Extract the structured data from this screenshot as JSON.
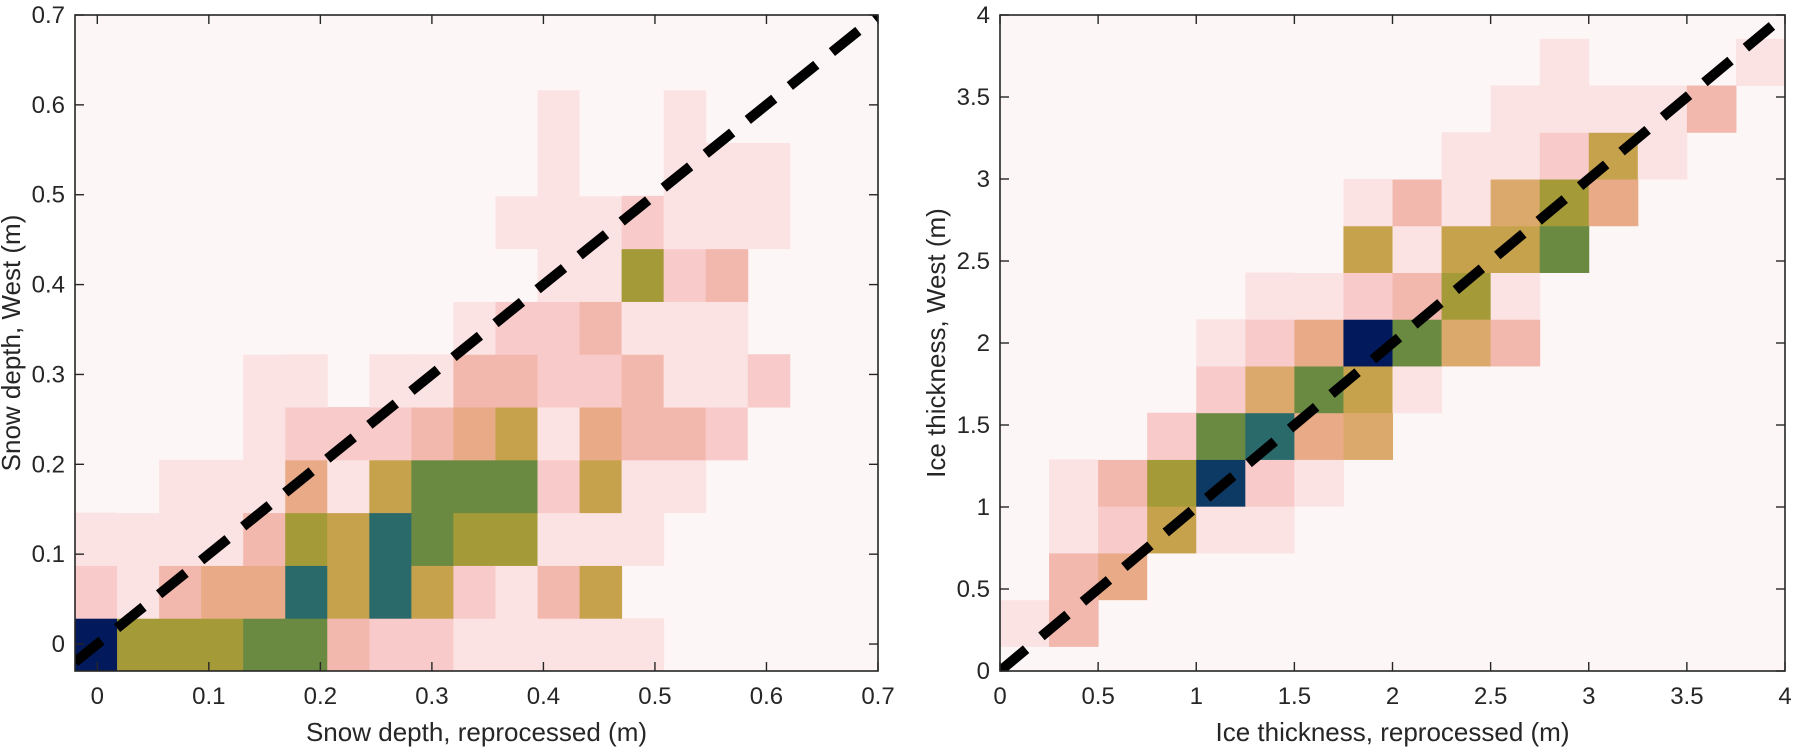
{
  "chart_data": [
    {
      "type": "heatmap",
      "xlabel": "Snow depth, reprocessed (m)",
      "ylabel": "Snow depth, West (m)",
      "xlim": [
        -0.02,
        0.7
      ],
      "ylim": [
        -0.03,
        0.7
      ],
      "xticks": [
        0,
        0.1,
        0.2,
        0.3,
        0.4,
        0.5,
        0.6,
        0.7
      ],
      "xtick_labels": [
        "0",
        "0.1",
        "0.2",
        "0.3",
        "0.4",
        "0.5",
        "0.6",
        "0.7"
      ],
      "yticks": [
        0,
        0.1,
        0.2,
        0.3,
        0.4,
        0.5,
        0.6,
        0.7
      ],
      "ytick_labels": [
        "0",
        "0.1",
        "0.2",
        "0.3",
        "0.4",
        "0.5",
        "0.6",
        "0.7"
      ],
      "x_bin_start": -0.02,
      "x_bin_width": 0.0377,
      "y_bin_start": -0.03,
      "y_bin_width": 0.05875,
      "bins": [
        [
          0,
          0,
          10
        ],
        [
          1,
          0,
          6
        ],
        [
          2,
          0,
          6
        ],
        [
          3,
          0,
          6
        ],
        [
          4,
          0,
          7
        ],
        [
          5,
          0,
          7
        ],
        [
          6,
          0,
          3
        ],
        [
          7,
          0,
          2
        ],
        [
          8,
          0,
          2
        ],
        [
          9,
          0,
          1
        ],
        [
          10,
          0,
          1
        ],
        [
          11,
          0,
          1
        ],
        [
          12,
          0,
          1
        ],
        [
          13,
          0,
          0.5
        ],
        [
          0,
          1,
          2
        ],
        [
          1,
          1,
          1
        ],
        [
          2,
          1,
          3
        ],
        [
          3,
          1,
          4
        ],
        [
          4,
          1,
          4
        ],
        [
          5,
          1,
          8
        ],
        [
          6,
          1,
          5
        ],
        [
          7,
          1,
          8
        ],
        [
          8,
          1,
          5
        ],
        [
          9,
          1,
          2
        ],
        [
          10,
          1,
          1
        ],
        [
          11,
          1,
          3
        ],
        [
          12,
          1,
          5
        ],
        [
          0,
          2,
          0.5
        ],
        [
          1,
          2,
          0.5
        ],
        [
          2,
          2,
          0.5
        ],
        [
          3,
          2,
          1
        ],
        [
          4,
          2,
          3
        ],
        [
          5,
          2,
          6
        ],
        [
          6,
          2,
          5
        ],
        [
          7,
          2,
          8
        ],
        [
          8,
          2,
          7
        ],
        [
          9,
          2,
          6
        ],
        [
          10,
          2,
          6
        ],
        [
          11,
          2,
          0.5
        ],
        [
          12,
          2,
          0.5
        ],
        [
          13,
          2,
          0.5
        ],
        [
          1,
          3,
          0.3
        ],
        [
          2,
          3,
          0.5
        ],
        [
          3,
          3,
          0.5
        ],
        [
          4,
          3,
          1
        ],
        [
          5,
          3,
          4
        ],
        [
          6,
          3,
          1
        ],
        [
          7,
          3,
          5
        ],
        [
          8,
          3,
          7
        ],
        [
          9,
          3,
          7
        ],
        [
          10,
          3,
          7
        ],
        [
          11,
          3,
          2
        ],
        [
          12,
          3,
          5
        ],
        [
          13,
          3,
          1
        ],
        [
          14,
          3,
          0.5
        ],
        [
          4,
          4,
          1
        ],
        [
          5,
          4,
          2
        ],
        [
          6,
          4,
          2
        ],
        [
          7,
          4,
          2
        ],
        [
          8,
          4,
          3
        ],
        [
          9,
          4,
          4
        ],
        [
          10,
          4,
          5
        ],
        [
          11,
          4,
          1
        ],
        [
          12,
          4,
          4
        ],
        [
          13,
          4,
          3
        ],
        [
          14,
          4,
          3
        ],
        [
          15,
          4,
          2
        ],
        [
          16,
          4,
          0.3
        ],
        [
          2,
          5,
          0.3
        ],
        [
          3,
          5,
          0.3
        ],
        [
          4,
          5,
          0.5
        ],
        [
          5,
          5,
          0.5
        ],
        [
          7,
          5,
          1
        ],
        [
          8,
          5,
          1
        ],
        [
          9,
          5,
          3
        ],
        [
          10,
          5,
          3
        ],
        [
          11,
          5,
          2
        ],
        [
          12,
          5,
          2
        ],
        [
          13,
          5,
          3
        ],
        [
          14,
          5,
          1
        ],
        [
          15,
          5,
          1
        ],
        [
          16,
          5,
          2
        ],
        [
          3,
          6,
          0.3
        ],
        [
          4,
          6,
          0.3
        ],
        [
          9,
          6,
          0.5
        ],
        [
          10,
          6,
          2
        ],
        [
          11,
          6,
          2
        ],
        [
          12,
          6,
          3
        ],
        [
          13,
          6,
          1
        ],
        [
          14,
          6,
          1
        ],
        [
          15,
          6,
          0.5
        ],
        [
          8,
          7,
          0.2
        ],
        [
          9,
          7,
          0.3
        ],
        [
          10,
          7,
          0.3
        ],
        [
          11,
          7,
          1
        ],
        [
          12,
          7,
          1
        ],
        [
          13,
          7,
          6
        ],
        [
          14,
          7,
          2
        ],
        [
          15,
          7,
          3
        ],
        [
          7,
          8,
          0.2
        ],
        [
          8,
          8,
          0.2
        ],
        [
          9,
          8,
          0.3
        ],
        [
          10,
          8,
          0.5
        ],
        [
          11,
          8,
          0.5
        ],
        [
          12,
          8,
          1
        ],
        [
          13,
          8,
          2
        ],
        [
          14,
          8,
          1
        ],
        [
          15,
          8,
          1
        ],
        [
          16,
          8,
          0.5
        ],
        [
          9,
          9,
          0.2
        ],
        [
          10,
          9,
          0.3
        ],
        [
          11,
          9,
          1
        ],
        [
          12,
          9,
          0.3
        ],
        [
          14,
          9,
          1
        ],
        [
          15,
          9,
          0.5
        ],
        [
          16,
          9,
          1
        ],
        [
          10,
          10,
          0.3
        ],
        [
          11,
          10,
          0.5
        ],
        [
          12,
          10,
          0.3
        ],
        [
          13,
          10,
          0.3
        ],
        [
          14,
          10,
          0.5
        ]
      ],
      "reference_line": "1:1 dashed"
    },
    {
      "type": "heatmap",
      "xlabel": "Ice thickness, reprocessed (m)",
      "ylabel": "Ice thickness, West (m)",
      "xlim": [
        0,
        4
      ],
      "ylim": [
        0,
        4
      ],
      "xticks": [
        0,
        0.5,
        1,
        1.5,
        2,
        2.5,
        3,
        3.5,
        4
      ],
      "xtick_labels": [
        "0",
        "0.5",
        "1",
        "1.5",
        "2",
        "2.5",
        "3",
        "3.5",
        "4"
      ],
      "yticks": [
        0,
        0.5,
        1,
        1.5,
        2,
        2.5,
        3,
        3.5,
        4
      ],
      "ytick_labels": [
        "0",
        "0.5",
        "1",
        "1.5",
        "2",
        "2.5",
        "3",
        "3.5",
        "4"
      ],
      "x_bin_start": 0,
      "x_bin_width": 0.25,
      "y_bin_start": 0.15,
      "y_bin_width": 0.285,
      "bins": [
        [
          0,
          0,
          1
        ],
        [
          1,
          0,
          3
        ],
        [
          6,
          0,
          0.2
        ],
        [
          0,
          1,
          0.2
        ],
        [
          1,
          1,
          3
        ],
        [
          2,
          1,
          4
        ],
        [
          3,
          1,
          0.2
        ],
        [
          1,
          2,
          1
        ],
        [
          2,
          2,
          2
        ],
        [
          3,
          2,
          6
        ],
        [
          4,
          2,
          1
        ],
        [
          5,
          2,
          0.5
        ],
        [
          1,
          3,
          0.5
        ],
        [
          2,
          3,
          3
        ],
        [
          3,
          3,
          7
        ],
        [
          4,
          3,
          10
        ],
        [
          5,
          3,
          2
        ],
        [
          6,
          3,
          0.5
        ],
        [
          2,
          4,
          0.2
        ],
        [
          3,
          4,
          2
        ],
        [
          4,
          4,
          8
        ],
        [
          5,
          4,
          9
        ],
        [
          6,
          4,
          4
        ],
        [
          7,
          4,
          5
        ],
        [
          4,
          5,
          2
        ],
        [
          5,
          5,
          5
        ],
        [
          6,
          5,
          8
        ],
        [
          7,
          5,
          6
        ],
        [
          8,
          5,
          1
        ],
        [
          4,
          6,
          0.5
        ],
        [
          5,
          6,
          2
        ],
        [
          6,
          6,
          4
        ],
        [
          7,
          6,
          11
        ],
        [
          8,
          6,
          8
        ],
        [
          9,
          6,
          5
        ],
        [
          10,
          6,
          3
        ],
        [
          5,
          7,
          1
        ],
        [
          6,
          7,
          1
        ],
        [
          7,
          7,
          2
        ],
        [
          8,
          7,
          3
        ],
        [
          9,
          7,
          7
        ],
        [
          10,
          7,
          0.5
        ],
        [
          6,
          8,
          0.2
        ],
        [
          7,
          8,
          6
        ],
        [
          8,
          8,
          0.5
        ],
        [
          9,
          8,
          6
        ],
        [
          10,
          8,
          6
        ],
        [
          11,
          8,
          8
        ],
        [
          7,
          9,
          1
        ],
        [
          8,
          9,
          3
        ],
        [
          9,
          9,
          0.5
        ],
        [
          10,
          9,
          5
        ],
        [
          11,
          9,
          7
        ],
        [
          12,
          9,
          4
        ],
        [
          8,
          10,
          0.3
        ],
        [
          9,
          10,
          1
        ],
        [
          10,
          10,
          1
        ],
        [
          11,
          10,
          2
        ],
        [
          12,
          10,
          6
        ],
        [
          13,
          10,
          1
        ],
        [
          10,
          11,
          1
        ],
        [
          11,
          11,
          1
        ],
        [
          12,
          11,
          1
        ],
        [
          13,
          11,
          0.5
        ],
        [
          14,
          11,
          3
        ],
        [
          11,
          12,
          1
        ],
        [
          15,
          12,
          1
        ]
      ],
      "reference_line": "1:1 dashed"
    }
  ],
  "colors": {
    "empty": "#fdf6f6",
    "colormap": [
      "#fdf6f6",
      "#fce3e3",
      "#f8caca",
      "#f3b8ad",
      "#e9ab87",
      "#dca96c",
      "#c7a24d",
      "#a49a38",
      "#6a8a42",
      "#2a6a6a",
      "#0d3a64",
      "#021a5c"
    ],
    "axes": "#262626",
    "reference_line": "#000000"
  }
}
